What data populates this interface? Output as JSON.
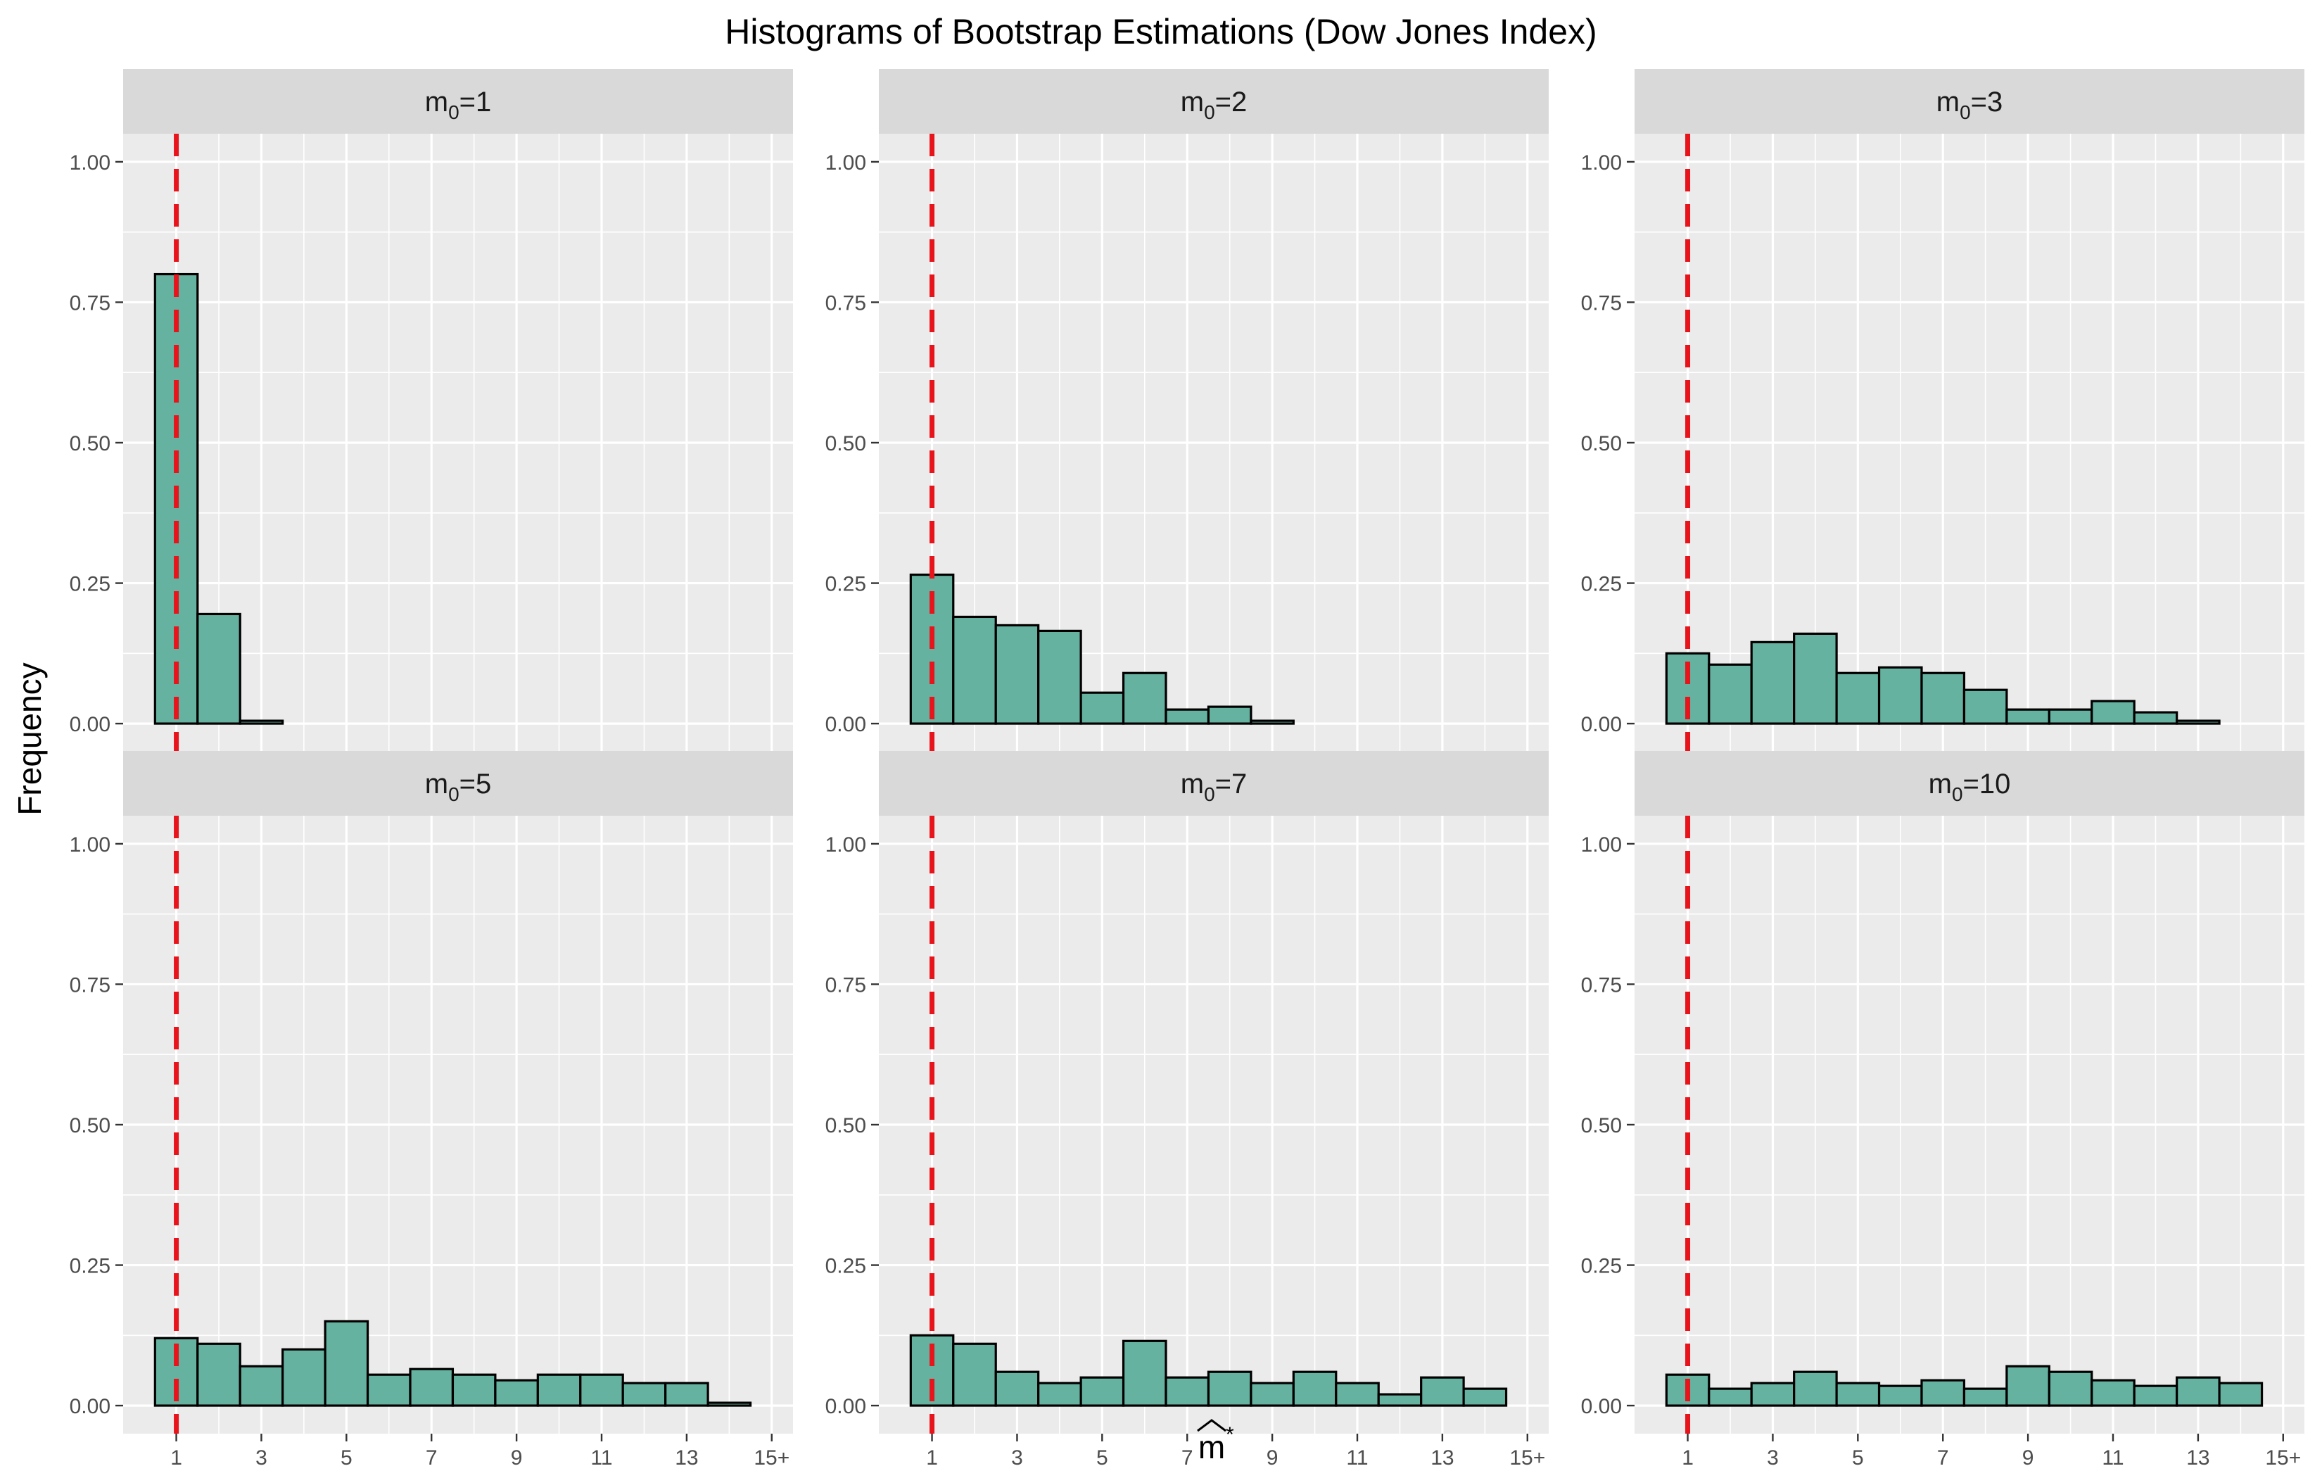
{
  "title": "Histograms of Bootstrap Estimations (Dow Jones Index)",
  "ylabel": "Frequency",
  "xlabel": {
    "base": "m",
    "hat": "^",
    "sup": "*"
  },
  "colors": {
    "background": "#ffffff",
    "panel": "#ebebeb",
    "grid": "#ffffff",
    "strip": "#d9d9d9",
    "bar_fill": "#66b2a0",
    "bar_stroke": "#000000",
    "reference_line": "#e8141c",
    "tick": "#4d4d4d"
  },
  "chart_data": [
    {
      "type": "bar",
      "panel_label": {
        "base": "m",
        "sub": "0",
        "suffix": "=1"
      },
      "x": [
        1,
        2,
        3,
        4,
        5,
        6,
        7,
        8,
        9,
        10,
        11,
        12,
        13,
        14
      ],
      "values": [
        0.8,
        0.195,
        0.005,
        0,
        0,
        0,
        0,
        0,
        0,
        0,
        0,
        0,
        0,
        0
      ],
      "reference_x": 1,
      "ylim": [
        -0.05,
        1.05
      ],
      "yticks": [
        0.0,
        0.25,
        0.5,
        0.75,
        1.0
      ],
      "yticklabels": [
        "0.00",
        "0.25",
        "0.50",
        "0.75",
        "1.00"
      ],
      "xticks": [
        1,
        3,
        5,
        7,
        9,
        11,
        13,
        15
      ],
      "xticklabels": [
        "1",
        "3",
        "5",
        "7",
        "9",
        "11",
        "13",
        "15+"
      ]
    },
    {
      "type": "bar",
      "panel_label": {
        "base": "m",
        "sub": "0",
        "suffix": "=2"
      },
      "x": [
        1,
        2,
        3,
        4,
        5,
        6,
        7,
        8,
        9,
        10,
        11,
        12,
        13,
        14
      ],
      "values": [
        0.265,
        0.19,
        0.175,
        0.165,
        0.055,
        0.09,
        0.025,
        0.03,
        0.005,
        0,
        0,
        0,
        0,
        0
      ],
      "reference_x": 1,
      "ylim": [
        -0.05,
        1.05
      ],
      "yticks": [
        0.0,
        0.25,
        0.5,
        0.75,
        1.0
      ],
      "yticklabels": [
        "0.00",
        "0.25",
        "0.50",
        "0.75",
        "1.00"
      ],
      "xticks": [
        1,
        3,
        5,
        7,
        9,
        11,
        13,
        15
      ],
      "xticklabels": [
        "1",
        "3",
        "5",
        "7",
        "9",
        "11",
        "13",
        "15+"
      ]
    },
    {
      "type": "bar",
      "panel_label": {
        "base": "m",
        "sub": "0",
        "suffix": "=3"
      },
      "x": [
        1,
        2,
        3,
        4,
        5,
        6,
        7,
        8,
        9,
        10,
        11,
        12,
        13,
        14
      ],
      "values": [
        0.125,
        0.105,
        0.145,
        0.16,
        0.09,
        0.1,
        0.09,
        0.06,
        0.025,
        0.025,
        0.04,
        0.02,
        0.005,
        0
      ],
      "reference_x": 1,
      "ylim": [
        -0.05,
        1.05
      ],
      "yticks": [
        0.0,
        0.25,
        0.5,
        0.75,
        1.0
      ],
      "yticklabels": [
        "0.00",
        "0.25",
        "0.50",
        "0.75",
        "1.00"
      ],
      "xticks": [
        1,
        3,
        5,
        7,
        9,
        11,
        13,
        15
      ],
      "xticklabels": [
        "1",
        "3",
        "5",
        "7",
        "9",
        "11",
        "13",
        "15+"
      ]
    },
    {
      "type": "bar",
      "panel_label": {
        "base": "m",
        "sub": "0",
        "suffix": "=5"
      },
      "x": [
        1,
        2,
        3,
        4,
        5,
        6,
        7,
        8,
        9,
        10,
        11,
        12,
        13,
        14
      ],
      "values": [
        0.12,
        0.11,
        0.07,
        0.1,
        0.15,
        0.055,
        0.065,
        0.055,
        0.045,
        0.055,
        0.055,
        0.04,
        0.04,
        0.005
      ],
      "reference_x": 1,
      "ylim": [
        -0.05,
        1.05
      ],
      "yticks": [
        0.0,
        0.25,
        0.5,
        0.75,
        1.0
      ],
      "yticklabels": [
        "0.00",
        "0.25",
        "0.50",
        "0.75",
        "1.00"
      ],
      "xticks": [
        1,
        3,
        5,
        7,
        9,
        11,
        13,
        15
      ],
      "xticklabels": [
        "1",
        "3",
        "5",
        "7",
        "9",
        "11",
        "13",
        "15+"
      ]
    },
    {
      "type": "bar",
      "panel_label": {
        "base": "m",
        "sub": "0",
        "suffix": "=7"
      },
      "x": [
        1,
        2,
        3,
        4,
        5,
        6,
        7,
        8,
        9,
        10,
        11,
        12,
        13,
        14
      ],
      "values": [
        0.125,
        0.11,
        0.06,
        0.04,
        0.05,
        0.115,
        0.05,
        0.06,
        0.04,
        0.06,
        0.04,
        0.02,
        0.05,
        0.03
      ],
      "reference_x": 1,
      "ylim": [
        -0.05,
        1.05
      ],
      "yticks": [
        0.0,
        0.25,
        0.5,
        0.75,
        1.0
      ],
      "yticklabels": [
        "0.00",
        "0.25",
        "0.50",
        "0.75",
        "1.00"
      ],
      "xticks": [
        1,
        3,
        5,
        7,
        9,
        11,
        13,
        15
      ],
      "xticklabels": [
        "1",
        "3",
        "5",
        "7",
        "9",
        "11",
        "13",
        "15+"
      ]
    },
    {
      "type": "bar",
      "panel_label": {
        "base": "m",
        "sub": "0",
        "suffix": "=10"
      },
      "x": [
        1,
        2,
        3,
        4,
        5,
        6,
        7,
        8,
        9,
        10,
        11,
        12,
        13,
        14
      ],
      "values": [
        0.055,
        0.03,
        0.04,
        0.06,
        0.04,
        0.035,
        0.045,
        0.03,
        0.07,
        0.06,
        0.045,
        0.035,
        0.05,
        0.04
      ],
      "reference_x": 1,
      "ylim": [
        -0.05,
        1.05
      ],
      "yticks": [
        0.0,
        0.25,
        0.5,
        0.75,
        1.0
      ],
      "yticklabels": [
        "0.00",
        "0.25",
        "0.50",
        "0.75",
        "1.00"
      ],
      "xticks": [
        1,
        3,
        5,
        7,
        9,
        11,
        13,
        15
      ],
      "xticklabels": [
        "1",
        "3",
        "5",
        "7",
        "9",
        "11",
        "13",
        "15+"
      ]
    }
  ]
}
